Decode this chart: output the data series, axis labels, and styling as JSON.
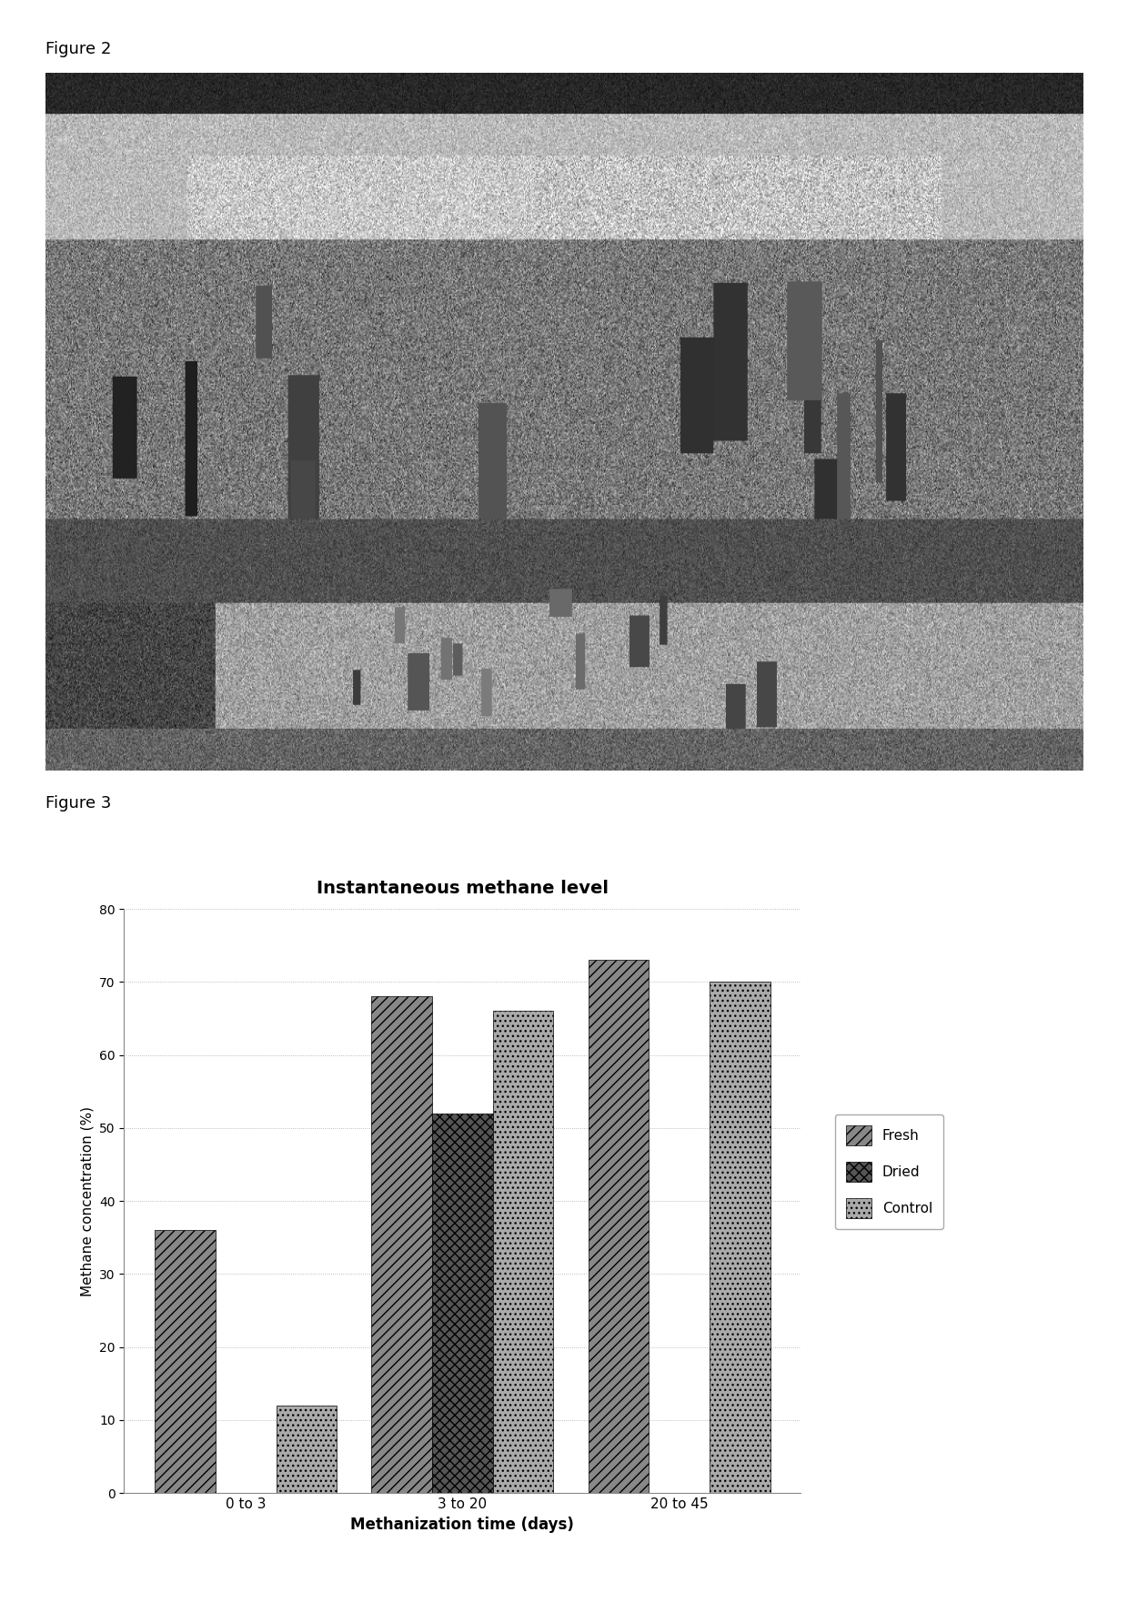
{
  "fig2_label": "Figure 2",
  "fig3_label": "Figure 3",
  "chart_title": "Instantaneous methane level",
  "xlabel": "Methanization time (days)",
  "ylabel": "Methane concentration (%)",
  "categories": [
    "0 to 3",
    "3 to 20",
    "20 to 45"
  ],
  "fresh_values": [
    36,
    68,
    73
  ],
  "dried_values": [
    0,
    52,
    0
  ],
  "control_values": [
    12,
    66,
    70
  ],
  "ylim": [
    0,
    80
  ],
  "yticks": [
    0,
    10,
    20,
    30,
    40,
    50,
    60,
    70,
    80
  ],
  "fresh_hatch": "///",
  "dried_hatch": "xxx",
  "control_hatch": "...",
  "fresh_color": "#888888",
  "dried_color": "#555555",
  "control_color": "#aaaaaa",
  "legend_labels": [
    "Fresh",
    "Dried",
    "Control"
  ],
  "bar_width": 0.28,
  "page_bg_color": "#ffffff"
}
